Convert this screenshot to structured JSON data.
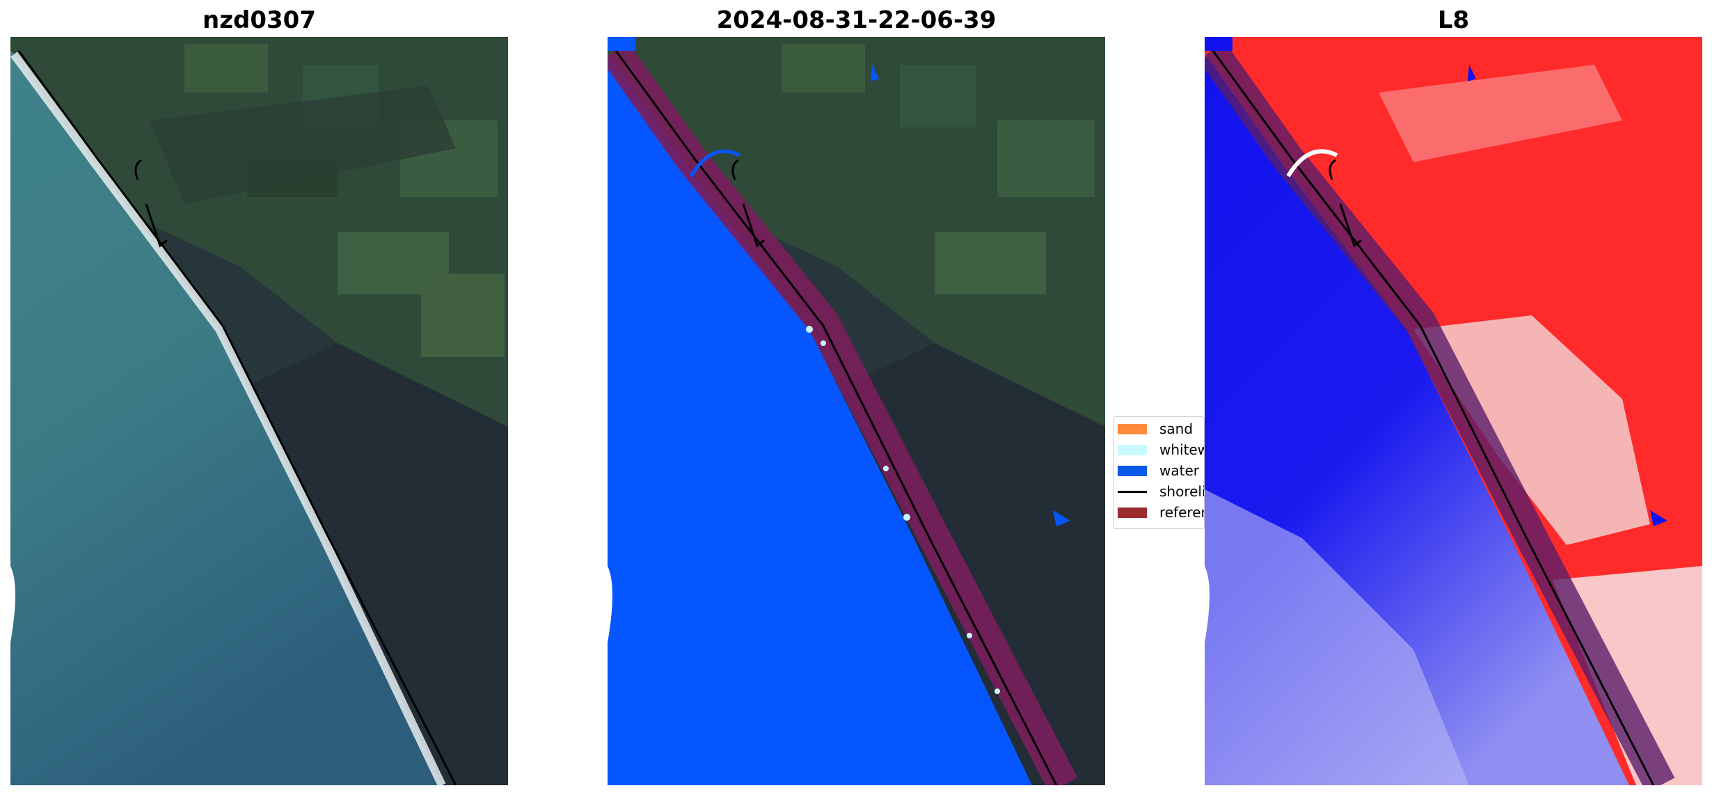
{
  "panels": [
    {
      "title": "nzd0307"
    },
    {
      "title": "2024-08-31-22-06-39"
    },
    {
      "title": "L8"
    }
  ],
  "legend": {
    "items": [
      {
        "label": "sand",
        "color": "#ff8c3a",
        "kind": "patch"
      },
      {
        "label": "whitewater",
        "color": "#c8fbff",
        "kind": "patch"
      },
      {
        "label": "water",
        "color": "#0a5ae8",
        "kind": "patch"
      },
      {
        "label": "shoreline",
        "color": "#000000",
        "kind": "line"
      },
      {
        "label": "reference",
        "color": "#9b2d2d",
        "kind": "patch"
      }
    ]
  },
  "colors": {
    "land": "#2f4a3a",
    "forest": "#1f2a33",
    "ocean_rgb": "#3d7a86",
    "ocean_deep": "#2b5d7e",
    "surf": "#e8eef0",
    "water_class": "#0556ff",
    "reference_band": "#7a1e5c",
    "index_land": "#ff2a2a",
    "index_water": "#1010ee"
  }
}
